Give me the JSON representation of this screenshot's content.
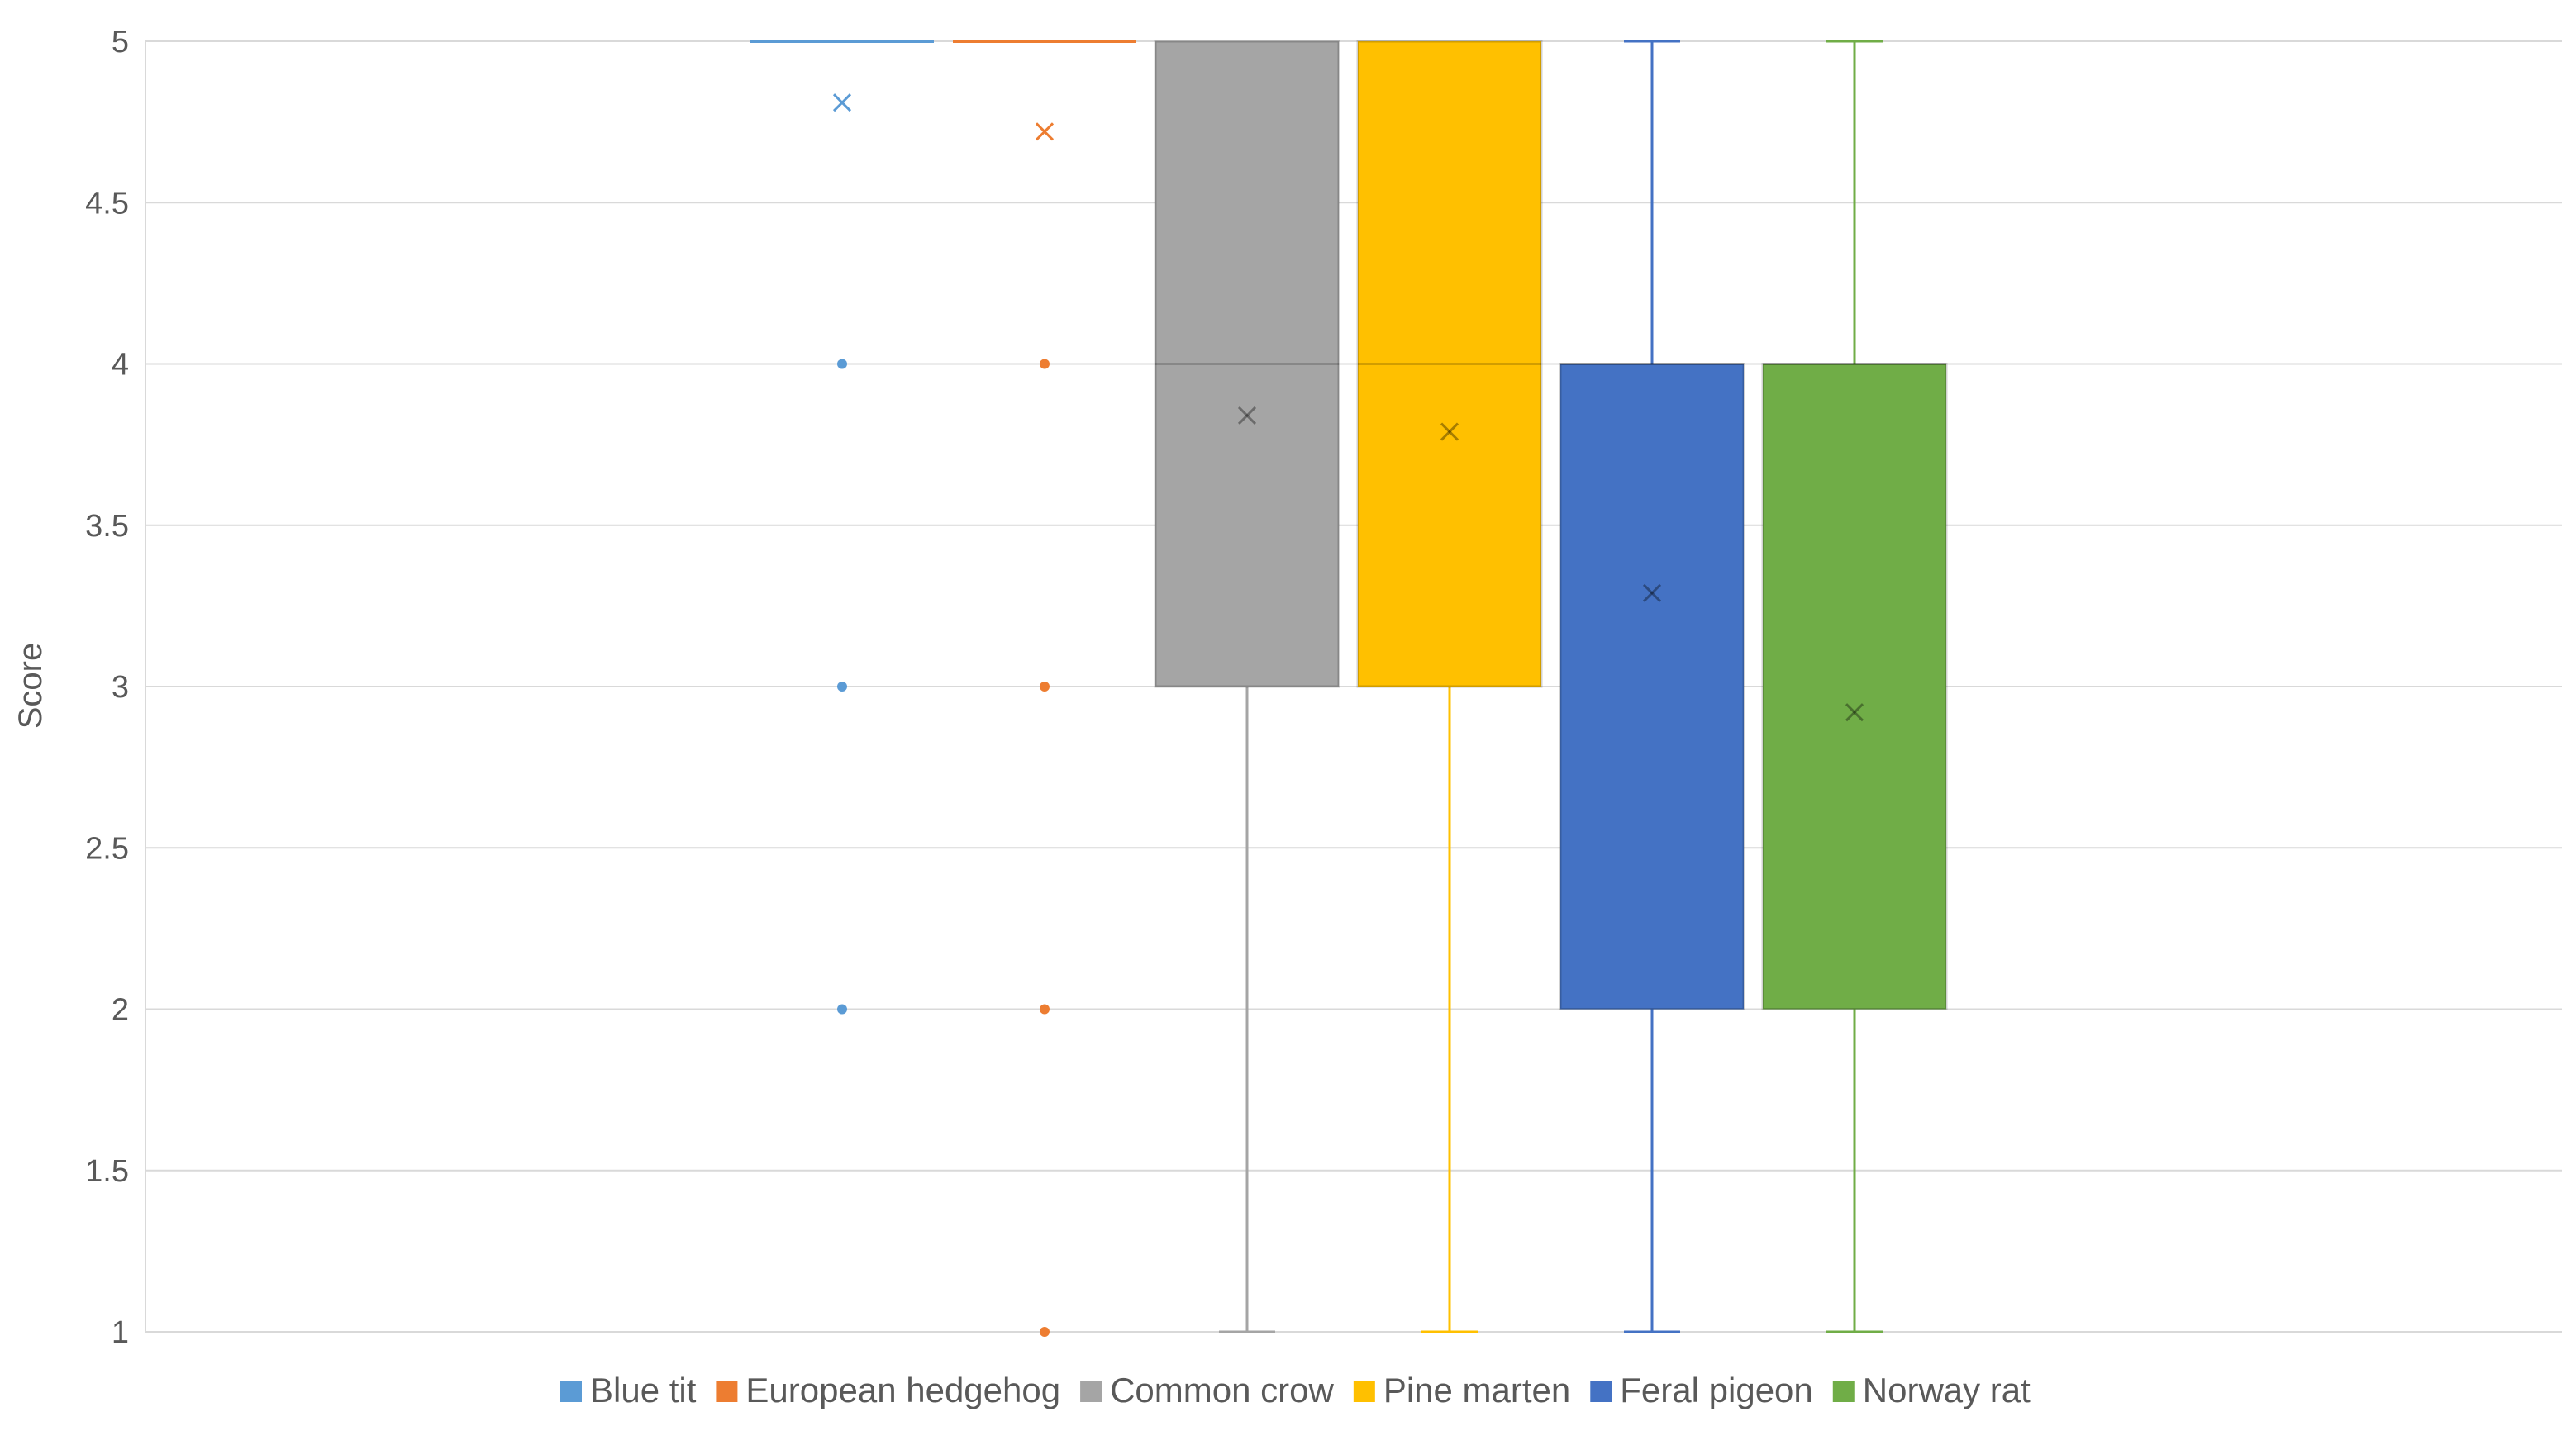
{
  "chart_data": {
    "type": "box",
    "title": "",
    "xlabel": "",
    "ylabel": "Score",
    "ylim": [
      1,
      5
    ],
    "yticks": [
      "1",
      "1.5",
      "2",
      "2.5",
      "3",
      "3.5",
      "4",
      "4.5",
      "5"
    ],
    "grid": true,
    "legend_position": "bottom",
    "series": [
      {
        "name": "Blue tit",
        "color": "#5B9BD5",
        "min": 5,
        "q1": 5,
        "median": 5,
        "q3": 5,
        "max": 5,
        "mean": 4.81,
        "outliers": [
          4,
          3,
          2
        ]
      },
      {
        "name": "European hedgehog",
        "color": "#ED7D31",
        "min": 5,
        "q1": 5,
        "median": 5,
        "q3": 5,
        "max": 5,
        "mean": 4.72,
        "outliers": [
          4,
          3,
          2,
          1
        ]
      },
      {
        "name": "Common crow",
        "color": "#A5A5A5",
        "min": 1,
        "q1": 3,
        "median": 4,
        "q3": 5,
        "max": 5,
        "mean": 3.84,
        "outliers": []
      },
      {
        "name": "Pine marten",
        "color": "#FFC000",
        "min": 1,
        "q1": 3,
        "median": 4,
        "q3": 5,
        "max": 5,
        "mean": 3.79,
        "outliers": []
      },
      {
        "name": "Feral pigeon",
        "color": "#4472C4",
        "min": 1,
        "q1": 2,
        "median": 4,
        "q3": 4,
        "max": 5,
        "mean": 3.29,
        "outliers": []
      },
      {
        "name": "Norway rat",
        "color": "#70AD47",
        "min": 1,
        "q1": 2,
        "median": 4,
        "q3": 4,
        "max": 5,
        "mean": 2.92,
        "outliers": []
      }
    ]
  }
}
